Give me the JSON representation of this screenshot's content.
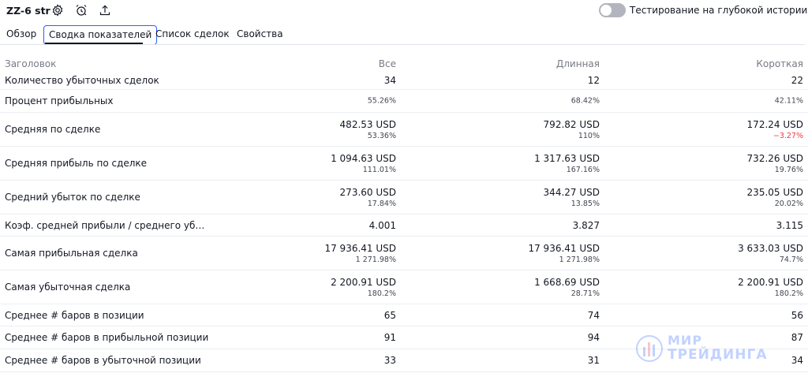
{
  "header": {
    "strategy_name": "ZZ-6 str",
    "deep_history_label": "Тестирование на глубокой истории",
    "deep_history_enabled": false
  },
  "icons": {
    "settings": "gear-icon",
    "alert": "alarm-clock-icon",
    "export": "upload-icon"
  },
  "tabs": [
    {
      "label": "Обзор",
      "active": false
    },
    {
      "label": "Сводка показателей",
      "active": true
    },
    {
      "label": "Список сделок",
      "active": false
    },
    {
      "label": "Свойства",
      "active": false
    }
  ],
  "table": {
    "columns": [
      "Заголовок",
      "Все",
      "Длинная",
      "Короткая"
    ],
    "rows": [
      {
        "label": "Количество убыточных сделок",
        "all": "34",
        "long": "12",
        "short": "22"
      },
      {
        "label": "Процент прибыльных",
        "all": "55.26%",
        "long": "68.42%",
        "short": "42.11%"
      },
      {
        "label": "Средняя по сделке",
        "all": "482.53 USD",
        "all_pct": "53.36%",
        "long": "792.82 USD",
        "long_pct": "110%",
        "short": "172.24 USD",
        "short_pct": "−3.27%"
      },
      {
        "label": "Средняя прибыль по сделке",
        "all": "1 094.63 USD",
        "all_pct": "111.01%",
        "long": "1 317.63 USD",
        "long_pct": "167.16%",
        "short": "732.26 USD",
        "short_pct": "19.76%"
      },
      {
        "label": "Средний убыток по сделке",
        "all": "273.60 USD",
        "all_pct": "17.84%",
        "long": "344.27 USD",
        "long_pct": "13.85%",
        "short": "235.05 USD",
        "short_pct": "20.02%"
      },
      {
        "label": "Коэф. средней прибыли / среднего уб…",
        "all": "4.001",
        "long": "3.827",
        "short": "3.115"
      },
      {
        "label": "Самая прибыльная сделка",
        "all": "17 936.41 USD",
        "all_pct": "1 271.98%",
        "long": "17 936.41 USD",
        "long_pct": "1 271.98%",
        "short": "3 633.03 USD",
        "short_pct": "74.7%"
      },
      {
        "label": "Самая убыточная сделка",
        "all": "2 200.91 USD",
        "all_pct": "180.2%",
        "long": "1 668.69 USD",
        "long_pct": "28.71%",
        "short": "2 200.91 USD",
        "short_pct": "180.2%"
      },
      {
        "label": "Среднее # баров в позиции",
        "all": "65",
        "long": "74",
        "short": "56"
      },
      {
        "label": "Среднее # баров в прибыльной позиции",
        "all": "91",
        "long": "94",
        "short": "87"
      },
      {
        "label": "Среднее # баров в убыточной позиции",
        "all": "33",
        "long": "31",
        "short": "34"
      }
    ]
  },
  "watermark": {
    "line1": "МИР",
    "line2": "ТРЕЙДИНГА"
  },
  "colors": {
    "accent": "#2962ff",
    "negative": "#f23645",
    "muted": "#787b86"
  }
}
